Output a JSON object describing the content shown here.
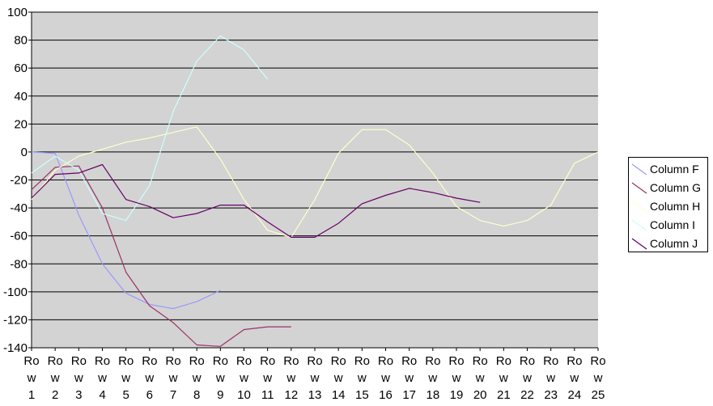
{
  "chart_data": {
    "type": "line",
    "title": "",
    "xlabel": "",
    "ylabel": "",
    "ylim": [
      -140,
      100
    ],
    "yticks": [
      100,
      80,
      60,
      40,
      20,
      0,
      -20,
      -40,
      -60,
      -80,
      -100,
      -120,
      -140
    ],
    "grid": true,
    "legend_position": "right",
    "categories": [
      "Row 1",
      "Row 2",
      "Row 3",
      "Row 4",
      "Row 5",
      "Row 6",
      "Row 7",
      "Row 8",
      "Row 9",
      "Row 10",
      "Row 11",
      "Row 12",
      "Row 13",
      "Row 14",
      "Row 15",
      "Row 16",
      "Row 17",
      "Row 18",
      "Row 19",
      "Row 20",
      "Row 21",
      "Row 22",
      "Row 23",
      "Row 24",
      "Row 25"
    ],
    "category_lines": [
      [
        "Ro",
        "w",
        "1"
      ],
      [
        "Ro",
        "w",
        "2"
      ],
      [
        "Ro",
        "w",
        "3"
      ],
      [
        "Ro",
        "w",
        "4"
      ],
      [
        "Ro",
        "w",
        "5"
      ],
      [
        "Ro",
        "w",
        "6"
      ],
      [
        "Ro",
        "w",
        "7"
      ],
      [
        "Ro",
        "w",
        "8"
      ],
      [
        "Ro",
        "w",
        "9"
      ],
      [
        "Ro",
        "w",
        "10"
      ],
      [
        "Ro",
        "w",
        "11"
      ],
      [
        "Ro",
        "w",
        "12"
      ],
      [
        "Ro",
        "w",
        "13"
      ],
      [
        "Ro",
        "w",
        "14"
      ],
      [
        "Ro",
        "w",
        "15"
      ],
      [
        "Ro",
        "w",
        "16"
      ],
      [
        "Ro",
        "w",
        "17"
      ],
      [
        "Ro",
        "w",
        "18"
      ],
      [
        "Ro",
        "w",
        "19"
      ],
      [
        "Ro",
        "w",
        "20"
      ],
      [
        "Ro",
        "w",
        "21"
      ],
      [
        "Ro",
        "w",
        "22"
      ],
      [
        "Ro",
        "w",
        "23"
      ],
      [
        "Ro",
        "w",
        "24"
      ],
      [
        "Ro",
        "w",
        "25"
      ]
    ],
    "plot_background": "#d3d3d3",
    "series": [
      {
        "name": "Column F",
        "color": "#9999ff",
        "values": [
          0,
          -1,
          -45,
          -80,
          -101,
          -109,
          -112,
          -107,
          -99,
          null,
          null,
          null,
          null,
          null,
          null,
          null,
          null,
          null,
          null,
          null,
          null,
          null,
          null,
          null,
          null
        ]
      },
      {
        "name": "Column G",
        "color": "#993366",
        "values": [
          -27,
          -11,
          -10,
          -40,
          -86,
          -110,
          -122,
          -138,
          -139,
          -127,
          -125,
          -125,
          null,
          null,
          null,
          null,
          null,
          null,
          null,
          null,
          null,
          null,
          null,
          null,
          null
        ]
      },
      {
        "name": "Column H",
        "color": "#ffffcc",
        "values": [
          -34,
          -13,
          -3,
          2,
          7,
          10,
          14,
          18,
          -5,
          -34,
          -56,
          -61,
          -34,
          -1,
          16,
          16,
          5,
          -15,
          -39,
          -49,
          -53,
          -49,
          -38,
          -8,
          0
        ]
      },
      {
        "name": "Column I",
        "color": "#ccffff",
        "values": [
          -15,
          -3,
          -13,
          -44,
          -49,
          -24,
          29,
          65,
          83,
          73,
          52,
          null,
          null,
          null,
          null,
          null,
          null,
          null,
          null,
          null,
          null,
          null,
          null,
          null,
          null
        ]
      },
      {
        "name": "Column J",
        "color": "#660066",
        "values": [
          -33,
          -16,
          -15,
          -9,
          -34,
          -39,
          -47,
          -44,
          -38,
          -38,
          -50,
          -61,
          -61,
          -51,
          -37,
          -31,
          -26,
          -29,
          -33,
          -36,
          null,
          null,
          null,
          null,
          null
        ]
      }
    ]
  }
}
